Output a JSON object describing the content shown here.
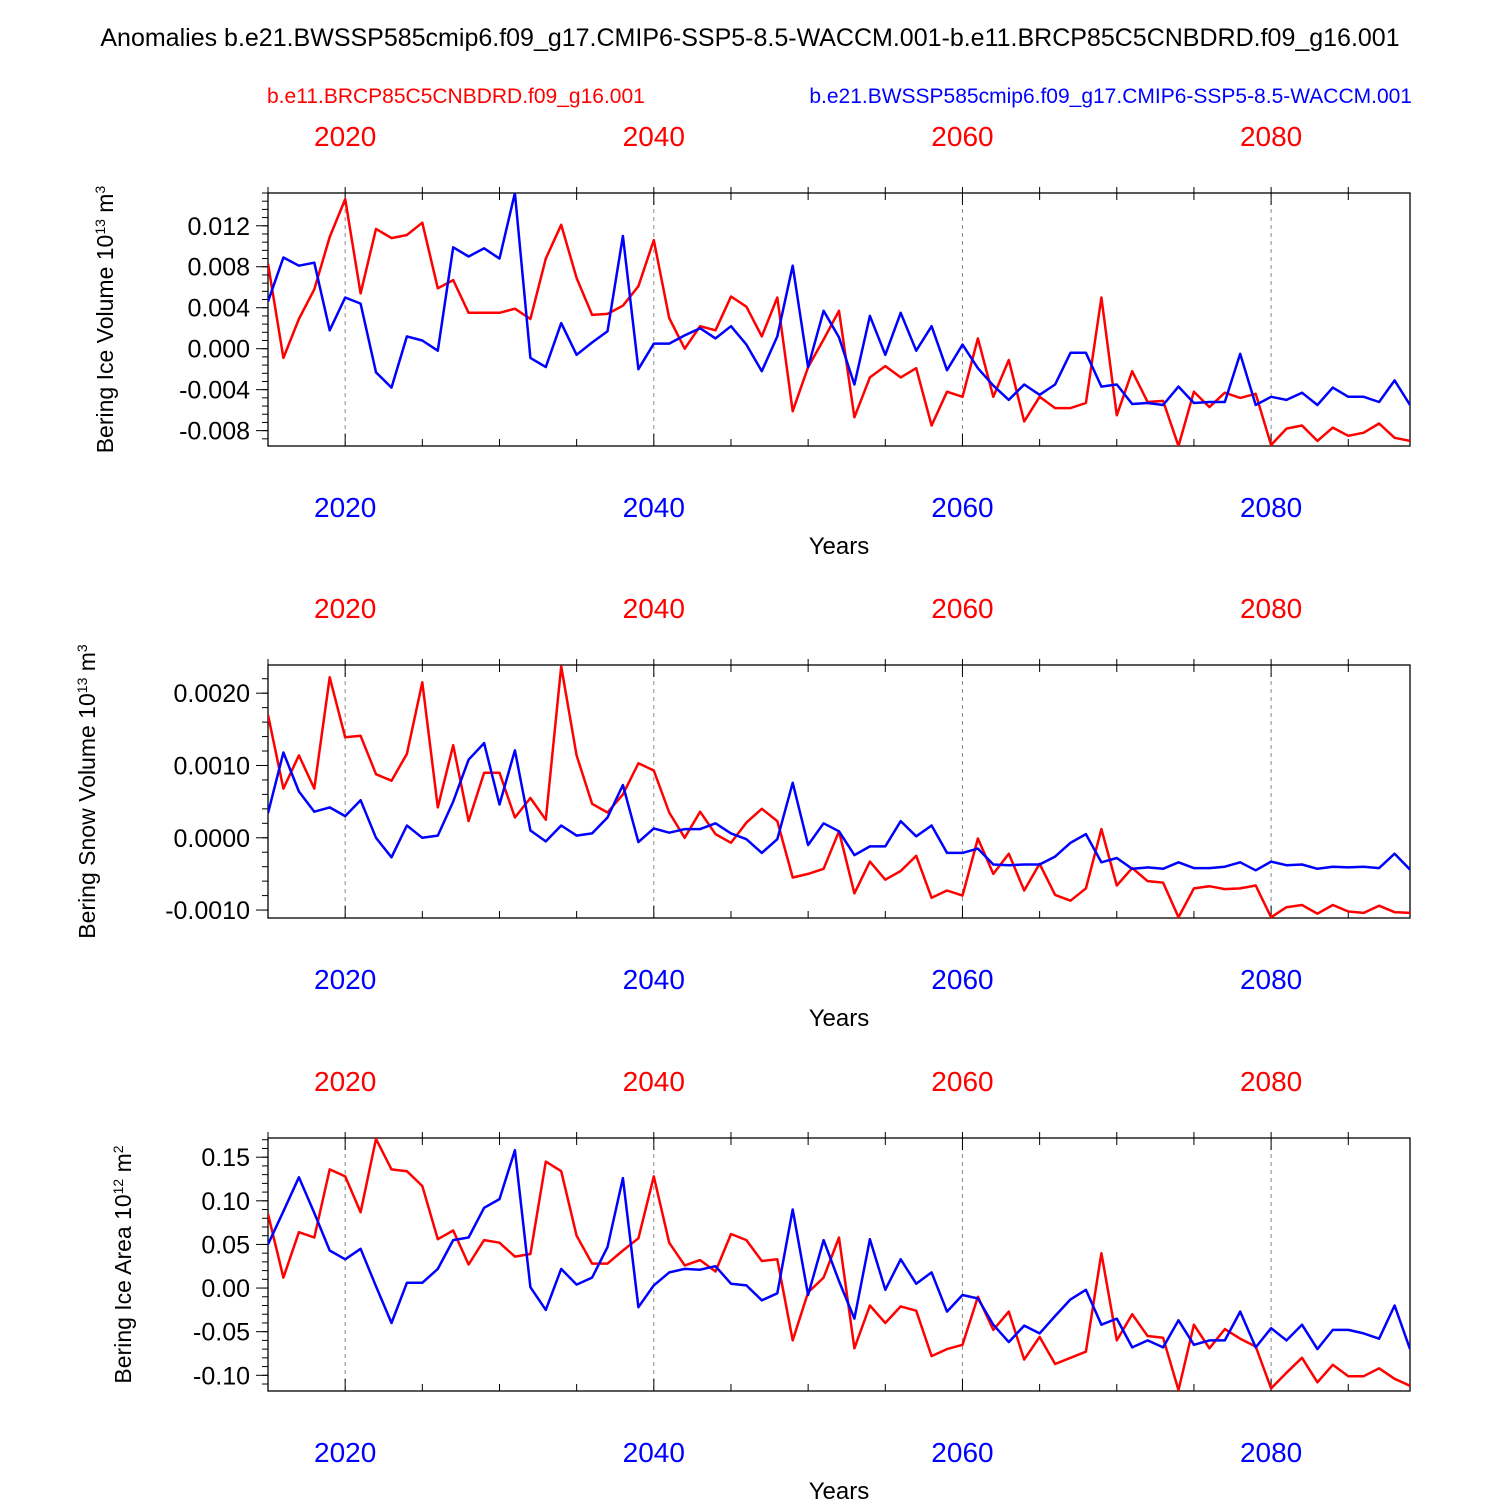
{
  "title": "Anomalies b.e21.BWSSP585cmip6.f09_g17.CMIP6-SSP5-8.5-WACCM.001-b.e11.BRCP85C5CNBDRD.f09_g16.001",
  "legend": {
    "red_label": "b.e11.BRCP85C5CNBDRD.f09_g16.001",
    "blue_label": "b.e21.BWSSP585cmip6.f09_g17.CMIP6-SSP5-8.5-WACCM.001"
  },
  "colors": {
    "red": "#ff0000",
    "blue": "#0000ff",
    "axis": "#000000",
    "grid": "#888888"
  },
  "chart_data": [
    {
      "type": "line",
      "ylabel": "Bering Ice Volume 10",
      "ylabel_exp": "13",
      "ylabel_unit": " m",
      "ylabel_unit_exp": "3",
      "xlabel": "Years",
      "xlim": [
        2015,
        2089
      ],
      "ylim": [
        -0.0095,
        0.0152
      ],
      "yticks": [
        0.012,
        0.008,
        0.004,
        0.0,
        -0.004,
        -0.008
      ],
      "ytick_labels": [
        "0.012",
        "0.008",
        "0.004",
        "0.000",
        "-0.004",
        "-0.008"
      ],
      "yminor_step": 0.0008,
      "xticks": [
        2020,
        2040,
        2060,
        2080
      ],
      "xtick_labels_top": [
        "2020",
        "2040",
        "2060",
        "2080"
      ],
      "xtick_labels_bottom": [
        "2020",
        "2040",
        "2060",
        "2080"
      ],
      "x_start": 2015,
      "series": [
        {
          "name": "b.e11.BRCP85C5CNBDRD.f09_g16.001",
          "color": "red",
          "values": [
            0.0083,
            -0.0009,
            0.0029,
            0.0058,
            0.0109,
            0.0146,
            0.0054,
            0.0117,
            0.0108,
            0.0111,
            0.0123,
            0.0059,
            0.0067,
            0.0035,
            0.0035,
            0.0035,
            0.0039,
            0.0029,
            0.0088,
            0.0121,
            0.0069,
            0.0033,
            0.0034,
            0.0042,
            0.0061,
            0.0106,
            0.003,
            0.0,
            0.0022,
            0.0018,
            0.0051,
            0.0041,
            0.0012,
            0.005,
            -0.0061,
            -0.0018,
            0.0009,
            0.0037,
            -0.0067,
            -0.0028,
            -0.0017,
            -0.0028,
            -0.0019,
            -0.0075,
            -0.0042,
            -0.0047,
            0.001,
            -0.0047,
            -0.0011,
            -0.0071,
            -0.0047,
            -0.0058,
            -0.0058,
            -0.0053,
            0.005,
            -0.0065,
            -0.0022,
            -0.0052,
            -0.0051,
            -0.0095,
            -0.0042,
            -0.0057,
            -0.0043,
            -0.0048,
            -0.0044,
            -0.0094,
            -0.0078,
            -0.0075,
            -0.009,
            -0.0077,
            -0.0085,
            -0.0082,
            -0.0073,
            -0.0087,
            -0.009
          ]
        },
        {
          "name": "b.e21.BWSSP585cmip6.f09_g17.CMIP6-SSP5-8.5-WACCM.001",
          "color": "blue",
          "values": [
            0.0046,
            0.0089,
            0.0081,
            0.0084,
            0.0018,
            0.005,
            0.0044,
            -0.0023,
            -0.0038,
            0.0012,
            0.0008,
            -0.0002,
            0.0099,
            0.009,
            0.0098,
            0.0088,
            0.0152,
            -0.0009,
            -0.0018,
            0.0025,
            -0.0006,
            0.0006,
            0.0017,
            0.011,
            -0.002,
            0.0005,
            0.0005,
            0.0013,
            0.002,
            0.001,
            0.0022,
            0.0004,
            -0.0022,
            0.0012,
            0.0081,
            -0.0018,
            0.0037,
            0.0011,
            -0.0035,
            0.0032,
            -0.0006,
            0.0035,
            -0.0002,
            0.0022,
            -0.0021,
            0.0004,
            -0.0019,
            -0.0036,
            -0.005,
            -0.0035,
            -0.0045,
            -0.0035,
            -0.0004,
            -0.0004,
            -0.0037,
            -0.0035,
            -0.0054,
            -0.0053,
            -0.0055,
            -0.0037,
            -0.0053,
            -0.0052,
            -0.0052,
            -0.0005,
            -0.0055,
            -0.0047,
            -0.005,
            -0.0043,
            -0.0055,
            -0.0038,
            -0.0047,
            -0.0047,
            -0.0052,
            -0.0031,
            -0.0055
          ]
        }
      ]
    },
    {
      "type": "line",
      "ylabel": "Bering Snow Volume 10",
      "ylabel_exp": "13",
      "ylabel_unit": " m",
      "ylabel_unit_exp": "3",
      "xlabel": "Years",
      "xlim": [
        2015,
        2089
      ],
      "ylim": [
        -0.00111,
        0.00239
      ],
      "yticks": [
        0.002,
        0.001,
        0.0,
        -0.001
      ],
      "ytick_labels": [
        "0.0020",
        "0.0010",
        "0.0000",
        "-0.0010"
      ],
      "yminor_step": 0.0002,
      "xticks": [
        2020,
        2040,
        2060,
        2080
      ],
      "xtick_labels_top": [
        "2020",
        "2040",
        "2060",
        "2080"
      ],
      "xtick_labels_bottom": [
        "2020",
        "2040",
        "2060",
        "2080"
      ],
      "x_start": 2015,
      "series": [
        {
          "name": "b.e11.BRCP85C5CNBDRD.f09_g16.001",
          "color": "red",
          "values": [
            0.0017,
            0.00068,
            0.00114,
            0.00068,
            0.00222,
            0.00139,
            0.00141,
            0.00088,
            0.00079,
            0.00116,
            0.00215,
            0.00042,
            0.00128,
            0.00023,
            0.0009,
            0.0009,
            0.00028,
            0.00055,
            0.00025,
            0.00237,
            0.00114,
            0.00047,
            0.00035,
            0.0006,
            0.00103,
            0.00093,
            0.00035,
            0.0,
            0.00036,
            5e-05,
            -7e-05,
            0.00021,
            0.0004,
            0.00023,
            -0.00055,
            -0.0005,
            -0.00043,
            9e-05,
            -0.00077,
            -0.00033,
            -0.00058,
            -0.00046,
            -0.00025,
            -0.00083,
            -0.00073,
            -0.0008,
            -1e-05,
            -0.0005,
            -0.00022,
            -0.00073,
            -0.00036,
            -0.00079,
            -0.00087,
            -0.0007,
            0.00012,
            -0.00066,
            -0.00042,
            -0.0006,
            -0.00062,
            -0.0011,
            -0.0007,
            -0.00067,
            -0.00071,
            -0.0007,
            -0.00066,
            -0.0011,
            -0.00096,
            -0.00093,
            -0.00105,
            -0.00093,
            -0.00102,
            -0.00104,
            -0.00094,
            -0.00103,
            -0.00104
          ]
        },
        {
          "name": "b.e21.BWSSP585cmip6.f09_g17.CMIP6-SSP5-8.5-WACCM.001",
          "color": "blue",
          "values": [
            0.00034,
            0.00118,
            0.00064,
            0.00036,
            0.00042,
            0.0003,
            0.00052,
            0.0,
            -0.00027,
            0.00017,
            0.0,
            3e-05,
            0.0005,
            0.00108,
            0.00131,
            0.00046,
            0.00121,
            0.0001,
            -5e-05,
            0.00017,
            3e-05,
            6e-05,
            0.00028,
            0.00073,
            -6e-05,
            0.00013,
            7e-05,
            0.00012,
            0.00012,
            0.0002,
            6e-05,
            -2e-05,
            -0.00021,
            -2e-05,
            0.00076,
            -0.0001,
            0.0002,
            9e-05,
            -0.00024,
            -0.00012,
            -0.00012,
            0.00023,
            2e-05,
            0.00017,
            -0.00021,
            -0.00021,
            -0.00015,
            -0.00037,
            -0.00038,
            -0.00037,
            -0.00037,
            -0.00026,
            -7e-05,
            5e-05,
            -0.00034,
            -0.00028,
            -0.00043,
            -0.00041,
            -0.00043,
            -0.00034,
            -0.00042,
            -0.00042,
            -0.0004,
            -0.00034,
            -0.00045,
            -0.00033,
            -0.00038,
            -0.00037,
            -0.00043,
            -0.0004,
            -0.00041,
            -0.0004,
            -0.00042,
            -0.00022,
            -0.00044
          ]
        }
      ]
    },
    {
      "type": "line",
      "ylabel": "Bering Ice Area 10",
      "ylabel_exp": "12",
      "ylabel_unit": " m",
      "ylabel_unit_exp": "2",
      "xlabel": "Years",
      "xlim": [
        2015,
        2089
      ],
      "ylim": [
        -0.118,
        0.172
      ],
      "yticks": [
        0.15,
        0.1,
        0.05,
        0.0,
        -0.05,
        -0.1
      ],
      "ytick_labels": [
        "0.15",
        "0.10",
        "0.05",
        "0.00",
        "-0.05",
        "-0.10"
      ],
      "yminor_step": 0.01,
      "xticks": [
        2020,
        2040,
        2060,
        2080
      ],
      "xtick_labels_top": [
        "2020",
        "2040",
        "2060",
        "2080"
      ],
      "xtick_labels_bottom": [
        "2020",
        "2040",
        "2060",
        "2080"
      ],
      "x_start": 2015,
      "series": [
        {
          "name": "b.e11.BRCP85C5CNBDRD.f09_g16.001",
          "color": "red",
          "values": [
            0.085,
            0.012,
            0.064,
            0.058,
            0.136,
            0.128,
            0.087,
            0.171,
            0.136,
            0.134,
            0.117,
            0.056,
            0.066,
            0.027,
            0.055,
            0.052,
            0.036,
            0.039,
            0.145,
            0.134,
            0.06,
            0.028,
            0.028,
            0.043,
            0.057,
            0.128,
            0.052,
            0.026,
            0.032,
            0.019,
            0.062,
            0.055,
            0.031,
            0.033,
            -0.06,
            -0.005,
            0.012,
            0.058,
            -0.069,
            -0.02,
            -0.04,
            -0.021,
            -0.026,
            -0.078,
            -0.07,
            -0.065,
            -0.01,
            -0.048,
            -0.027,
            -0.082,
            -0.056,
            -0.087,
            -0.08,
            -0.073,
            0.04,
            -0.06,
            -0.03,
            -0.055,
            -0.057,
            -0.117,
            -0.042,
            -0.069,
            -0.047,
            -0.058,
            -0.067,
            -0.115,
            -0.097,
            -0.08,
            -0.108,
            -0.088,
            -0.101,
            -0.101,
            -0.092,
            -0.104,
            -0.112
          ]
        },
        {
          "name": "b.e21.BWSSP585cmip6.f09_g17.CMIP6-SSP5-8.5-WACCM.001",
          "color": "blue",
          "values": [
            0.05,
            0.088,
            0.127,
            0.086,
            0.043,
            0.033,
            0.045,
            0.002,
            -0.04,
            0.006,
            0.006,
            0.022,
            0.055,
            0.058,
            0.092,
            0.102,
            0.158,
            0.001,
            -0.025,
            0.022,
            0.004,
            0.012,
            0.047,
            0.126,
            -0.022,
            0.003,
            0.018,
            0.022,
            0.021,
            0.025,
            0.005,
            0.003,
            -0.014,
            -0.006,
            0.09,
            -0.008,
            0.055,
            0.008,
            -0.035,
            0.056,
            -0.002,
            0.033,
            0.005,
            0.018,
            -0.027,
            -0.008,
            -0.012,
            -0.042,
            -0.062,
            -0.043,
            -0.052,
            -0.032,
            -0.013,
            -0.002,
            -0.042,
            -0.035,
            -0.068,
            -0.06,
            -0.068,
            -0.037,
            -0.065,
            -0.06,
            -0.06,
            -0.027,
            -0.068,
            -0.046,
            -0.06,
            -0.042,
            -0.07,
            -0.048,
            -0.048,
            -0.052,
            -0.058,
            -0.02,
            -0.07
          ]
        }
      ]
    }
  ]
}
